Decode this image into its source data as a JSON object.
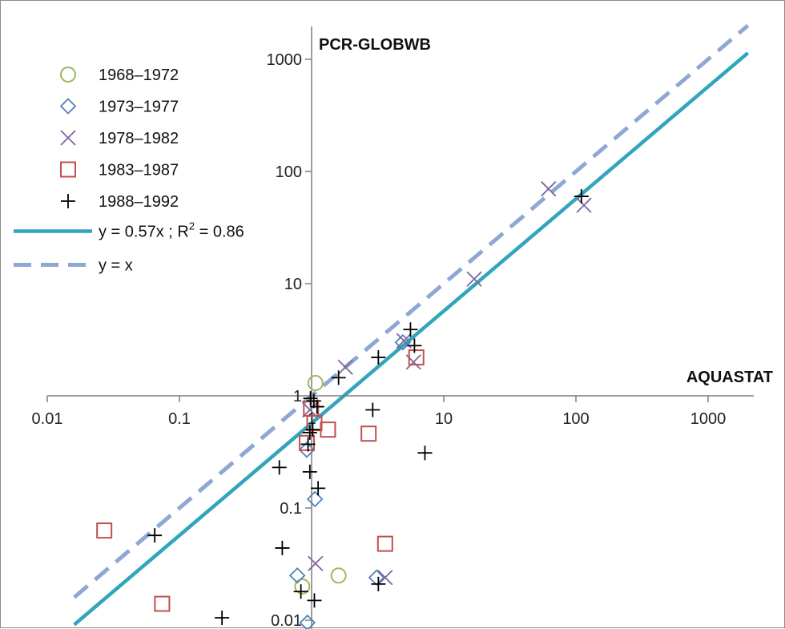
{
  "chart_data": {
    "type": "scatter",
    "xlabel": "AQUASTAT",
    "ylabel": "PCR-GLOBWB",
    "xscale": "log",
    "yscale": "log",
    "xlim": [
      0.01,
      2000
    ],
    "ylim": [
      0.0085,
      2000
    ],
    "xticks": [
      "0.01",
      "0.1",
      "1",
      "10",
      "100",
      "1000"
    ],
    "yticks": [
      "0.01",
      "0.1",
      "1",
      "10",
      "100",
      "1000"
    ],
    "grid": false,
    "legend_position": "top-left",
    "series": [
      {
        "name": "1968–1972",
        "marker": "circle",
        "color": "#9bbb59",
        "points": [
          [
            1.07,
            1.3
          ],
          [
            1.6,
            0.025
          ],
          [
            0.85,
            0.02
          ]
        ]
      },
      {
        "name": "1973–1977",
        "marker": "diamond",
        "color": "#4f81bd",
        "points": [
          [
            0.92,
            0.33
          ],
          [
            1.06,
            0.12
          ],
          [
            0.78,
            0.025
          ],
          [
            0.93,
            0.0095
          ],
          [
            3.1,
            0.024
          ],
          [
            4.9,
            3.0
          ]
        ]
      },
      {
        "name": "1978–1982",
        "marker": "cross",
        "color": "#8064a2",
        "points": [
          [
            0.97,
            0.75
          ],
          [
            1.8,
            1.8
          ],
          [
            5.9,
            2.0
          ],
          [
            5.0,
            3.1
          ],
          [
            17,
            11
          ],
          [
            62,
            70
          ],
          [
            115,
            50
          ],
          [
            1.07,
            0.032
          ],
          [
            3.6,
            0.024
          ]
        ]
      },
      {
        "name": "1983–1987",
        "marker": "square",
        "color": "#c0504d",
        "points": [
          [
            0.027,
            0.063
          ],
          [
            0.074,
            0.014
          ],
          [
            0.92,
            0.38
          ],
          [
            0.99,
            0.77
          ],
          [
            1.05,
            0.57
          ],
          [
            1.33,
            0.5
          ],
          [
            2.7,
            0.46
          ],
          [
            6.2,
            2.2
          ],
          [
            3.6,
            0.048
          ]
        ]
      },
      {
        "name": "1988–1992",
        "marker": "plus",
        "color": "#000000",
        "points": [
          [
            0.98,
            0.95
          ],
          [
            1.04,
            0.9
          ],
          [
            1.1,
            0.8
          ],
          [
            1.02,
            0.5
          ],
          [
            0.97,
            0.47
          ],
          [
            0.94,
            0.37
          ],
          [
            0.57,
            0.23
          ],
          [
            0.97,
            0.21
          ],
          [
            1.12,
            0.15
          ],
          [
            1.6,
            1.45
          ],
          [
            3.2,
            2.2
          ],
          [
            2.9,
            0.75
          ],
          [
            5.6,
            3.9
          ],
          [
            6.0,
            2.8
          ],
          [
            7.2,
            0.31
          ],
          [
            110,
            60
          ],
          [
            0.065,
            0.057
          ],
          [
            0.6,
            0.044
          ],
          [
            0.83,
            0.018
          ],
          [
            1.05,
            0.015
          ],
          [
            0.21,
            0.0105
          ],
          [
            3.2,
            0.021
          ]
        ]
      }
    ],
    "lines": [
      {
        "name": "y = 0.57x ; R² = 0.86",
        "label_main": "y = 0.57x ; R",
        "label_sup": "2",
        "label_tail": " = 0.86",
        "slope": 0.57,
        "x_range": [
          0.016,
          2000
        ],
        "style": "solid",
        "color": "#31a5bb"
      },
      {
        "name": "y = x",
        "slope": 1,
        "x_range": [
          0.016,
          2000
        ],
        "style": "dashed",
        "color": "#8ea8d4"
      }
    ]
  }
}
